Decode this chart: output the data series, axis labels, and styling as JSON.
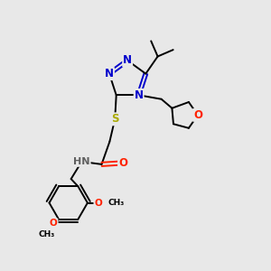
{
  "background_color": "#e8e8e8",
  "bond_color": "#000000",
  "N_color": "#0000cc",
  "O_color": "#ff2200",
  "S_color": "#aaaa00",
  "H_color": "#606060",
  "figsize": [
    3.0,
    3.0
  ],
  "dpi": 100,
  "xlim": [
    0,
    10
  ],
  "ylim": [
    0,
    10
  ]
}
